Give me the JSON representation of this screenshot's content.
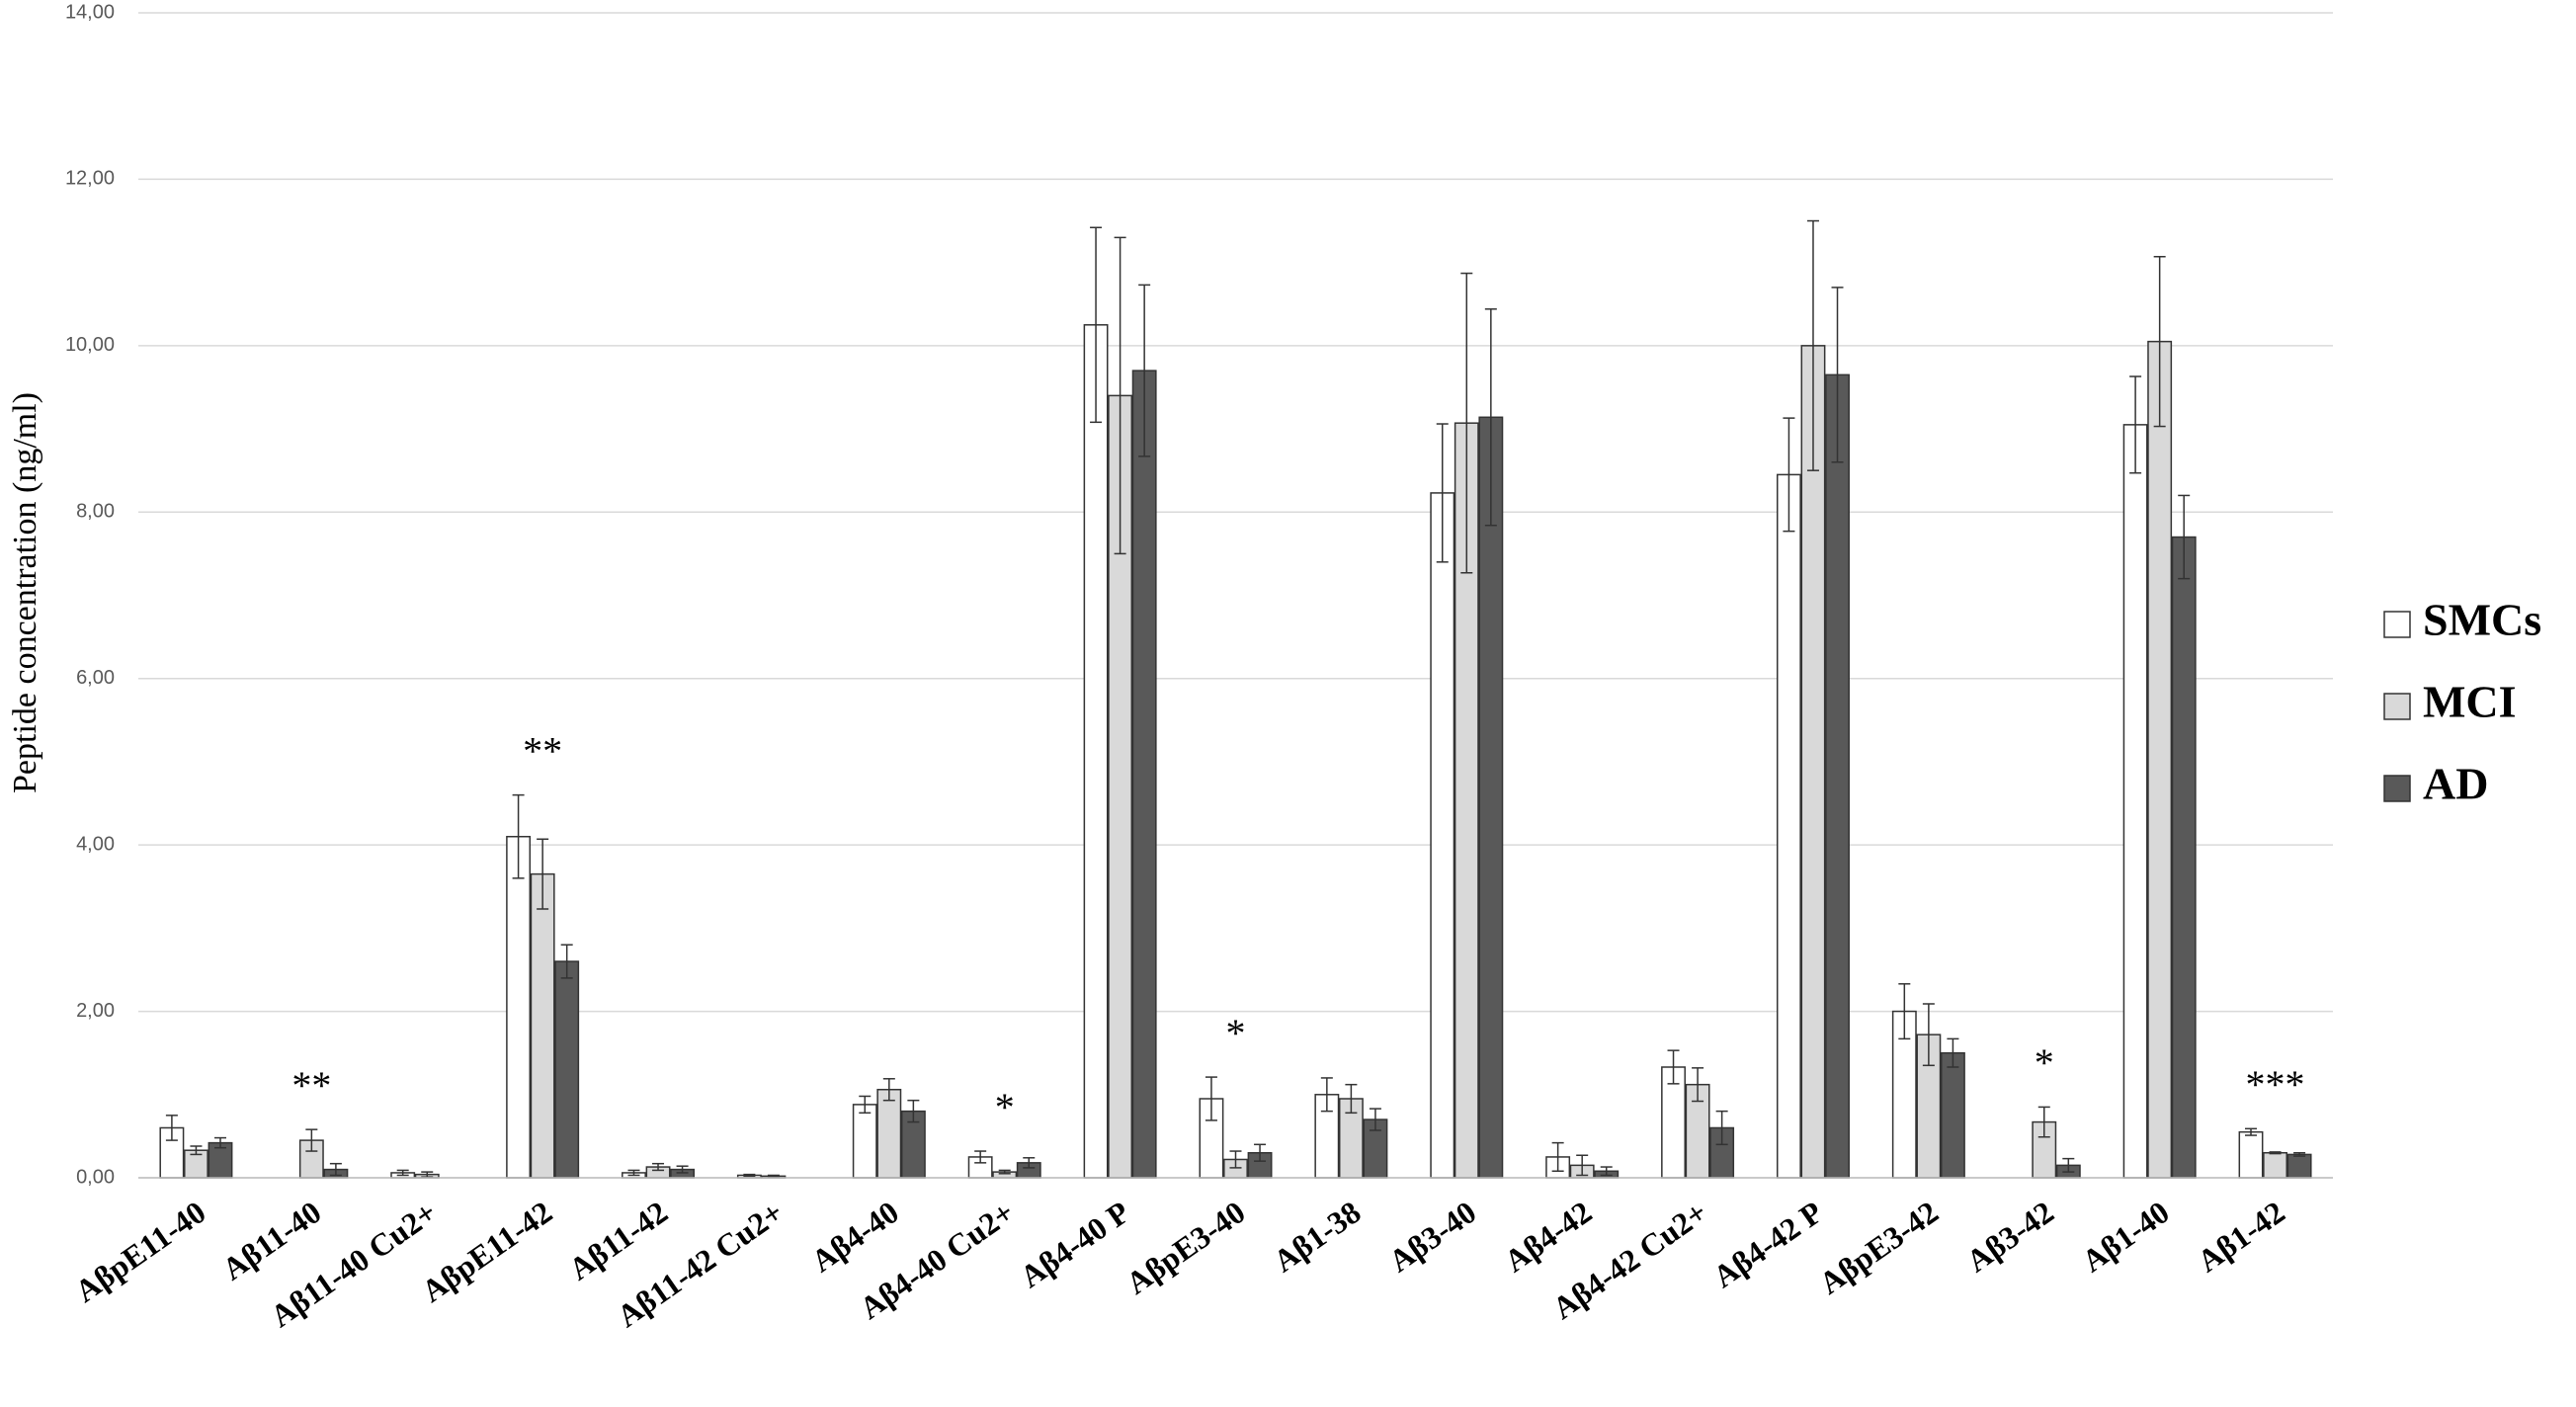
{
  "chart_data": {
    "type": "bar",
    "y_label": "Peptide concentration  (ng/ml)",
    "categories": [
      "AβpE11-40",
      "Aβ11-40",
      "Aβ11-40 Cu2+",
      "AβpE11-42",
      "Aβ11-42",
      "Aβ11-42 Cu2+",
      "Aβ4-40",
      "Aβ4-40 Cu2+",
      "Aβ4-40 P",
      "AβpE3-40",
      "Aβ1-38",
      "Aβ3-40",
      "Aβ4-42",
      "Aβ4-42 Cu2+",
      "Aβ4-42 P",
      "AβpE3-42",
      "Aβ3-42",
      "Aβ1-40",
      "Aβ1-42"
    ],
    "series": [
      {
        "name": "SMCs",
        "color": "#ffffff",
        "values": [
          0.6,
          null,
          0.06,
          4.1,
          0.06,
          0.03,
          0.88,
          0.25,
          10.25,
          0.95,
          1.0,
          8.23,
          0.25,
          1.33,
          8.45,
          2.0,
          null,
          9.05,
          0.55
        ],
        "errors": [
          0.15,
          null,
          0.03,
          0.5,
          0.03,
          0.01,
          0.1,
          0.07,
          1.17,
          0.26,
          0.2,
          0.83,
          0.17,
          0.2,
          0.68,
          0.33,
          null,
          0.58,
          0.04
        ]
      },
      {
        "name": "MCI",
        "color": "#d9d9d9",
        "values": [
          0.33,
          0.45,
          0.04,
          3.65,
          0.13,
          0.02,
          1.06,
          0.07,
          9.4,
          0.22,
          0.95,
          9.07,
          0.15,
          1.12,
          10.0,
          1.72,
          0.67,
          10.05,
          0.3
        ],
        "errors": [
          0.05,
          0.13,
          0.03,
          0.42,
          0.04,
          0.01,
          0.13,
          0.02,
          1.9,
          0.1,
          0.17,
          1.8,
          0.12,
          0.2,
          1.5,
          0.37,
          0.18,
          1.02,
          0.01
        ]
      },
      {
        "name": "AD",
        "color": "#595959",
        "values": [
          0.42,
          0.1,
          null,
          2.6,
          0.1,
          null,
          0.8,
          0.18,
          9.7,
          0.3,
          0.7,
          9.14,
          0.08,
          0.6,
          9.65,
          1.5,
          0.15,
          7.7,
          0.28
        ],
        "errors": [
          0.06,
          0.07,
          null,
          0.2,
          0.04,
          null,
          0.13,
          0.06,
          1.03,
          0.1,
          0.13,
          1.3,
          0.05,
          0.2,
          1.05,
          0.17,
          0.08,
          0.5,
          0.02
        ]
      }
    ],
    "annotations": [
      {
        "category": "Aβ11-40",
        "text": "**"
      },
      {
        "category": "AβpE11-42",
        "text": "**"
      },
      {
        "category": "Aβ4-40 Cu2+",
        "text": "*"
      },
      {
        "category": "AβpE3-40",
        "text": "*"
      },
      {
        "category": "Aβ3-42",
        "text": "*"
      },
      {
        "category": "Aβ1-42",
        "text": "***"
      }
    ],
    "ylim": [
      0,
      14
    ],
    "yticks": [
      {
        "value": 0,
        "label": "0,00"
      },
      {
        "value": 2,
        "label": "2,00"
      },
      {
        "value": 4,
        "label": "4,00"
      },
      {
        "value": 6,
        "label": "6,00"
      },
      {
        "value": 8,
        "label": "8,00"
      },
      {
        "value": 10,
        "label": "10,00"
      },
      {
        "value": 12,
        "label": "12,00"
      },
      {
        "value": 14,
        "label": "14,00"
      }
    ],
    "grid": true,
    "legend": "right"
  }
}
